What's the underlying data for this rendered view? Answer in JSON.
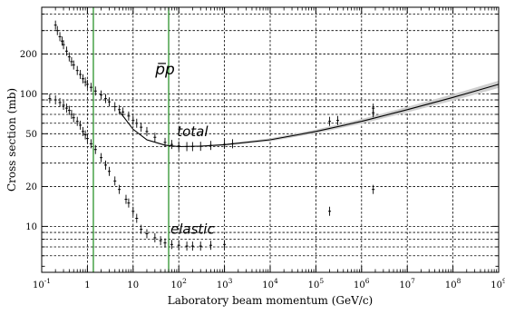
{
  "chart_data": {
    "type": "scatter",
    "title": "",
    "xlabel": "Laboratory beam momentum (GeV/c)",
    "ylabel": "Cross section (mb)",
    "x_scale": "log",
    "y_scale": "log",
    "xlim": [
      0.1,
      1000000000
    ],
    "ylim": [
      4.5,
      450
    ],
    "grid": true,
    "x_ticks": [
      {
        "value": 0.1,
        "label_base": "10",
        "label_exp": "-1"
      },
      {
        "value": 1,
        "label_base": "1",
        "label_exp": ""
      },
      {
        "value": 10,
        "label_base": "10",
        "label_exp": ""
      },
      {
        "value": 100,
        "label_base": "10",
        "label_exp": "2"
      },
      {
        "value": 1000,
        "label_base": "10",
        "label_exp": "3"
      },
      {
        "value": 10000,
        "label_base": "10",
        "label_exp": "4"
      },
      {
        "value": 100000,
        "label_base": "10",
        "label_exp": "5"
      },
      {
        "value": 1000000,
        "label_base": "10",
        "label_exp": "6"
      },
      {
        "value": 10000000,
        "label_base": "10",
        "label_exp": "7"
      },
      {
        "value": 100000000,
        "label_base": "10",
        "label_exp": "8"
      },
      {
        "value": 1000000000,
        "label_base": "10",
        "label_exp": "9"
      }
    ],
    "y_ticks": [
      {
        "value": 10,
        "label": "10"
      },
      {
        "value": 20,
        "label": "20"
      },
      {
        "value": 50,
        "label": "50"
      },
      {
        "value": 100,
        "label": "100"
      },
      {
        "value": 200,
        "label": "200"
      }
    ],
    "y_gridlines": [
      6,
      7,
      8,
      9,
      10,
      20,
      30,
      40,
      50,
      60,
      70,
      80,
      90,
      100,
      200,
      300,
      400
    ],
    "vertical_markers": [
      {
        "x": 1.35,
        "color": "#1a8a1a"
      },
      {
        "x": 60,
        "color": "#1a8a1a"
      }
    ],
    "annotations": [
      {
        "text": "p̅p",
        "x": 50,
        "y": 140,
        "style": "big"
      },
      {
        "text": "total",
        "x": 200,
        "y": 48,
        "style": "normal"
      },
      {
        "text": "elastic",
        "x": 200,
        "y": 8.8,
        "style": "normal"
      }
    ],
    "series": [
      {
        "name": "total",
        "fit": [
          [
            5,
            74
          ],
          [
            10,
            54
          ],
          [
            20,
            45
          ],
          [
            50,
            41
          ],
          [
            100,
            40
          ],
          [
            300,
            40.3
          ],
          [
            1000,
            41.3
          ],
          [
            10000,
            45
          ],
          [
            100000,
            52
          ],
          [
            1000000,
            62
          ],
          [
            10000000,
            76
          ],
          [
            100000000,
            94
          ],
          [
            1000000000,
            118
          ]
        ],
        "points": [
          [
            0.2,
            330
          ],
          [
            0.22,
            300
          ],
          [
            0.25,
            270
          ],
          [
            0.28,
            250
          ],
          [
            0.3,
            235
          ],
          [
            0.35,
            210
          ],
          [
            0.4,
            190
          ],
          [
            0.45,
            175
          ],
          [
            0.5,
            165
          ],
          [
            0.6,
            150
          ],
          [
            0.7,
            140
          ],
          [
            0.8,
            130
          ],
          [
            0.9,
            123
          ],
          [
            1,
            118
          ],
          [
            1.2,
            112
          ],
          [
            1.5,
            105
          ],
          [
            2,
            98
          ],
          [
            2.5,
            92
          ],
          [
            3,
            87
          ],
          [
            4,
            80
          ],
          [
            5,
            76
          ],
          [
            6,
            73
          ],
          [
            8,
            68
          ],
          [
            10,
            63
          ],
          [
            12,
            60
          ],
          [
            15,
            56
          ],
          [
            20,
            52
          ],
          [
            30,
            47
          ],
          [
            50,
            43
          ],
          [
            70,
            41.5
          ],
          [
            100,
            40.5
          ],
          [
            150,
            40
          ],
          [
            200,
            40
          ],
          [
            300,
            40.2
          ],
          [
            500,
            40.8
          ],
          [
            1000,
            41.5
          ],
          [
            1500,
            42
          ],
          [
            200000,
            62
          ],
          [
            300000,
            63
          ],
          [
            1800000,
            72
          ],
          [
            1800000,
            78
          ]
        ]
      },
      {
        "name": "elastic",
        "points": [
          [
            0.15,
            92
          ],
          [
            0.2,
            90
          ],
          [
            0.25,
            86
          ],
          [
            0.3,
            82
          ],
          [
            0.35,
            78
          ],
          [
            0.4,
            75
          ],
          [
            0.45,
            70
          ],
          [
            0.5,
            66
          ],
          [
            0.6,
            62
          ],
          [
            0.7,
            58
          ],
          [
            0.8,
            52
          ],
          [
            0.9,
            49
          ],
          [
            1,
            46
          ],
          [
            1.2,
            42
          ],
          [
            1.5,
            38
          ],
          [
            2,
            33
          ],
          [
            2.5,
            29
          ],
          [
            3,
            26
          ],
          [
            4,
            22
          ],
          [
            5,
            19
          ],
          [
            7,
            16
          ],
          [
            8,
            15
          ],
          [
            10,
            13
          ],
          [
            12,
            11.5
          ],
          [
            15,
            9.5
          ],
          [
            20,
            8.8
          ],
          [
            30,
            8.2
          ],
          [
            40,
            7.8
          ],
          [
            50,
            7.5
          ],
          [
            70,
            7.3
          ],
          [
            100,
            7.2
          ],
          [
            150,
            7.1
          ],
          [
            200,
            7.1
          ],
          [
            300,
            7.1
          ],
          [
            500,
            7.2
          ],
          [
            1000,
            7.3
          ],
          [
            200000,
            13
          ],
          [
            1800000,
            19
          ]
        ]
      }
    ]
  }
}
